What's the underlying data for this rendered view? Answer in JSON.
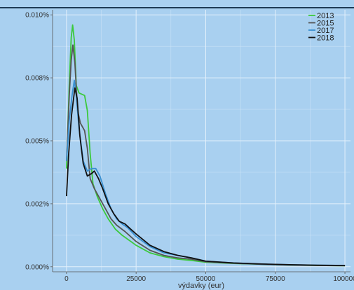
{
  "chart_data": {
    "type": "line",
    "title": "",
    "xlabel": "výdavky (eur)",
    "ylabel": "",
    "xlim": [
      -5000,
      102000
    ],
    "ylim": [
      -0.0002,
      0.0102
    ],
    "x_ticks": [
      0,
      25000,
      50000,
      75000,
      100000
    ],
    "x_tick_labels": [
      "0",
      "25000",
      "50000",
      "75000",
      "100000"
    ],
    "y_ticks": [
      0,
      0.0025,
      0.005,
      0.0075,
      0.01
    ],
    "y_tick_labels": [
      "0.000%",
      "0.002%",
      "0.005%",
      "0.008%",
      "0.010%"
    ],
    "grid": true,
    "legend_position": "top-right",
    "series": [
      {
        "name": "2013",
        "color": "#3cc93c",
        "points": [
          [
            0,
            0.0039
          ],
          [
            1000,
            0.0072
          ],
          [
            1700,
            0.0091
          ],
          [
            2200,
            0.0096
          ],
          [
            2800,
            0.009
          ],
          [
            3500,
            0.0072
          ],
          [
            4500,
            0.0069
          ],
          [
            6500,
            0.0068
          ],
          [
            7500,
            0.0062
          ],
          [
            8500,
            0.0045
          ],
          [
            9500,
            0.0033
          ],
          [
            11000,
            0.0028
          ],
          [
            13000,
            0.0023
          ],
          [
            15000,
            0.0019
          ],
          [
            17500,
            0.0015
          ],
          [
            20000,
            0.00125
          ],
          [
            25000,
            0.00085
          ],
          [
            30000,
            0.00055
          ],
          [
            35000,
            0.0004
          ],
          [
            40000,
            0.0003
          ],
          [
            45000,
            0.00025
          ],
          [
            50000,
            0.00018
          ],
          [
            60000,
            0.00013
          ],
          [
            70000,
            0.0001
          ],
          [
            80000,
            7e-05
          ],
          [
            90000,
            5e-05
          ],
          [
            100000,
            4e-05
          ]
        ]
      },
      {
        "name": "2015",
        "color": "#555555",
        "points": [
          [
            0,
            0.0042
          ],
          [
            1000,
            0.0068
          ],
          [
            1700,
            0.0082
          ],
          [
            2300,
            0.0088
          ],
          [
            3000,
            0.0081
          ],
          [
            4000,
            0.0062
          ],
          [
            5000,
            0.0057
          ],
          [
            6500,
            0.0054
          ],
          [
            7500,
            0.0047
          ],
          [
            8500,
            0.0035
          ],
          [
            10000,
            0.0031
          ],
          [
            12000,
            0.0027
          ],
          [
            14000,
            0.0023
          ],
          [
            16000,
            0.0019
          ],
          [
            18000,
            0.00165
          ],
          [
            21000,
            0.0014
          ],
          [
            25000,
            0.001
          ],
          [
            30000,
            0.00065
          ],
          [
            35000,
            0.00045
          ],
          [
            40000,
            0.00035
          ],
          [
            45000,
            0.0003
          ],
          [
            50000,
            0.0002
          ],
          [
            60000,
            0.00014
          ],
          [
            70000,
            0.0001
          ],
          [
            80000,
            7e-05
          ],
          [
            90000,
            5e-05
          ],
          [
            100000,
            4e-05
          ]
        ]
      },
      {
        "name": "2017",
        "color": "#3a8fd0",
        "points": [
          [
            0,
            0.0042
          ],
          [
            1000,
            0.0058
          ],
          [
            2000,
            0.0068
          ],
          [
            2800,
            0.0074
          ],
          [
            3500,
            0.0068
          ],
          [
            4500,
            0.0055
          ],
          [
            6000,
            0.0042
          ],
          [
            7500,
            0.0038
          ],
          [
            9000,
            0.0039
          ],
          [
            10500,
            0.0039
          ],
          [
            12000,
            0.0036
          ],
          [
            14000,
            0.0029
          ],
          [
            16000,
            0.0023
          ],
          [
            18000,
            0.0019
          ],
          [
            20000,
            0.0017
          ],
          [
            22000,
            0.00155
          ],
          [
            25000,
            0.0012
          ],
          [
            30000,
            0.0008
          ],
          [
            35000,
            0.00055
          ],
          [
            40000,
            0.00045
          ],
          [
            45000,
            0.00035
          ],
          [
            50000,
            0.00022
          ],
          [
            60000,
            0.00015
          ],
          [
            70000,
            0.00011
          ],
          [
            80000,
            8e-05
          ],
          [
            90000,
            6e-05
          ],
          [
            100000,
            5e-05
          ]
        ]
      },
      {
        "name": "2018",
        "color": "#111111",
        "points": [
          [
            0,
            0.0028
          ],
          [
            800,
            0.0045
          ],
          [
            1800,
            0.006
          ],
          [
            3000,
            0.0071
          ],
          [
            3800,
            0.0067
          ],
          [
            4800,
            0.0052
          ],
          [
            6000,
            0.0041
          ],
          [
            7500,
            0.0036
          ],
          [
            9000,
            0.0037
          ],
          [
            10000,
            0.0038
          ],
          [
            11500,
            0.0035
          ],
          [
            13000,
            0.0031
          ],
          [
            15000,
            0.0025
          ],
          [
            17000,
            0.0021
          ],
          [
            19000,
            0.0018
          ],
          [
            21000,
            0.0017
          ],
          [
            23000,
            0.0015
          ],
          [
            25000,
            0.0013
          ],
          [
            30000,
            0.00085
          ],
          [
            35000,
            0.0006
          ],
          [
            40000,
            0.00045
          ],
          [
            45000,
            0.00035
          ],
          [
            50000,
            0.00022
          ],
          [
            60000,
            0.00015
          ],
          [
            70000,
            0.00011
          ],
          [
            80000,
            8e-05
          ],
          [
            90000,
            6e-05
          ],
          [
            100000,
            5e-05
          ]
        ]
      }
    ]
  }
}
